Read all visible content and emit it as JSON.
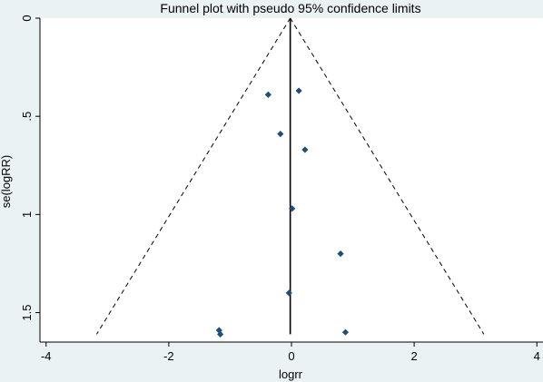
{
  "chart_data": {
    "type": "scatter",
    "title": "Funnel plot with pseudo 95% confidence limits",
    "xlabel": "logrr",
    "ylabel": "se(logRR)",
    "xlim": [
      -4.1,
      4.1
    ],
    "ylim": [
      0,
      1.65
    ],
    "y_reversed": true,
    "x_ticks": [
      -4,
      -2,
      0,
      2,
      4
    ],
    "y_ticks": [
      0,
      0.5,
      1,
      1.5
    ],
    "x_tick_labels": [
      "-4",
      "-2",
      "0",
      "2",
      "4"
    ],
    "y_tick_labels": [
      "0",
      ".5",
      "1",
      "1.5"
    ],
    "pooled_estimate": -0.02,
    "confidence_limit_z": 1.96,
    "funnel_se_max": 1.61,
    "grid": false,
    "legend": "none",
    "points": [
      {
        "x": -0.38,
        "y": 0.39
      },
      {
        "x": 0.12,
        "y": 0.37
      },
      {
        "x": -0.18,
        "y": 0.59
      },
      {
        "x": 0.22,
        "y": 0.67
      },
      {
        "x": 0.01,
        "y": 0.97
      },
      {
        "x": 0.8,
        "y": 1.2
      },
      {
        "x": -0.04,
        "y": 1.4
      },
      {
        "x": -1.18,
        "y": 1.59
      },
      {
        "x": -1.16,
        "y": 1.61
      },
      {
        "x": 0.88,
        "y": 1.6
      }
    ],
    "colors": {
      "background": "#eaf2f3",
      "plot_area": "#ffffff",
      "marker": "#1f4e79",
      "line": "#000000"
    }
  }
}
